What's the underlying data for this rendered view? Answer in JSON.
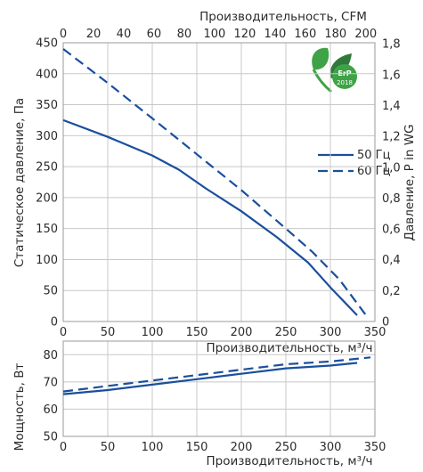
{
  "colors": {
    "series": "#1a4f9c",
    "grid": "#c8c8c8",
    "text": "#2b2b2b",
    "badge_green": "#3da346",
    "badge_dark": "#2f7a3b"
  },
  "badge": {
    "label": "ErP",
    "year": "2018",
    "icon": "erp-leaf-icon"
  },
  "chart_data": [
    {
      "type": "line",
      "xlabel": "Производительность, м³/ч",
      "x2label": "Производительность, CFM",
      "ylabel": "Статическое давление, Па",
      "y2label": "Давление,  P in WG",
      "xlim": [
        0,
        350
      ],
      "ylim": [
        0,
        450
      ],
      "x_ticks": [
        0,
        50,
        100,
        150,
        200,
        250,
        300,
        350
      ],
      "y_ticks": [
        0,
        50,
        100,
        150,
        200,
        250,
        300,
        350,
        400,
        450
      ],
      "x2_ticks": [
        0,
        20,
        40,
        60,
        80,
        100,
        120,
        140,
        160,
        180,
        200
      ],
      "x2_per_x": 0.5886,
      "y2_ticks": [
        "0",
        "0,2",
        "0,4",
        "0,6",
        "0,8",
        "1,0",
        "1,2",
        "1,4",
        "1,6",
        "1,8"
      ],
      "y2_values": [
        0,
        0.2,
        0.4,
        0.6,
        0.8,
        1.0,
        1.2,
        1.4,
        1.6,
        1.8
      ],
      "y2_per_y": 0.004015,
      "grid": true,
      "legend_position": "top-right",
      "series": [
        {
          "name": "50 Гц",
          "dash": "solid",
          "x": [
            0,
            50,
            100,
            130,
            160,
            200,
            240,
            275,
            300,
            330
          ],
          "y": [
            325,
            298,
            268,
            245,
            215,
            178,
            136,
            95,
            55,
            10
          ]
        },
        {
          "name": "60 Гц",
          "dash": "dashed",
          "x": [
            0,
            50,
            100,
            150,
            200,
            250,
            280,
            310,
            340
          ],
          "y": [
            440,
            385,
            328,
            270,
            212,
            150,
            112,
            68,
            10
          ]
        }
      ]
    },
    {
      "type": "line",
      "xlabel": "Производительность, м³/ч",
      "ylabel": "Мощность, Вт",
      "xlim": [
        0,
        350
      ],
      "ylim": [
        50,
        85
      ],
      "x_ticks": [
        0,
        50,
        100,
        150,
        200,
        250,
        300,
        350
      ],
      "y_ticks": [
        50,
        60,
        70,
        80
      ],
      "grid": true,
      "series": [
        {
          "name": "50 Гц",
          "dash": "solid",
          "x": [
            0,
            50,
            100,
            150,
            200,
            250,
            300,
            330
          ],
          "y": [
            65.5,
            67,
            69,
            71,
            73,
            75,
            76,
            77
          ]
        },
        {
          "name": "60 Гц",
          "dash": "dashed",
          "x": [
            0,
            50,
            100,
            150,
            200,
            250,
            300,
            345
          ],
          "y": [
            66.5,
            68.5,
            70.5,
            72.5,
            74.5,
            76.5,
            77.5,
            79
          ]
        }
      ]
    }
  ]
}
